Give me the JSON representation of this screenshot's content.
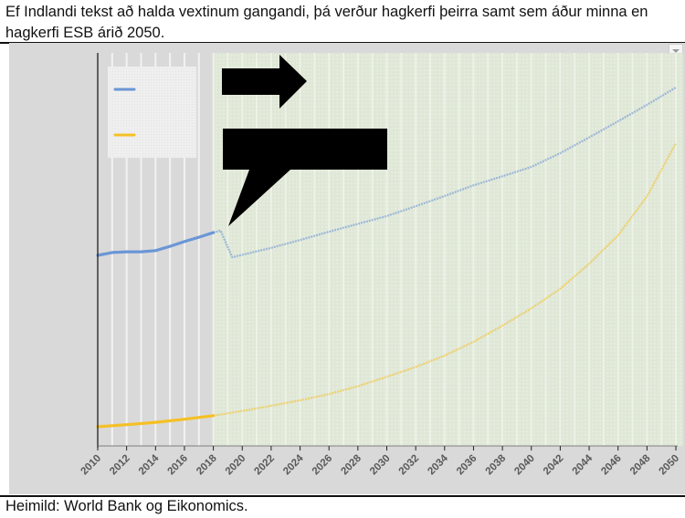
{
  "caption_top": "Ef Indlandi tekst að halda vextinum gangandi, þá verður hagkerfi þeirra samt sem áður minna en hagkerfi ESB árið 2050.",
  "caption_bottom": "Heimild: World Bank og Eikonomics.",
  "colors": {
    "blue_series": "#6a96d6",
    "yellow_series": "#f5c025",
    "frame_bg": "#d9d9d9",
    "forecast_bg": "#e0e8d8",
    "annotation": "#000000"
  },
  "chart_data": {
    "type": "line",
    "title": "",
    "xlabel": "",
    "ylabel": "",
    "y_axis_labels_visible": false,
    "y_units": "relative (0-100 of plot height; no y-axis values shown)",
    "x_ticks": [
      "2010",
      "2012",
      "2014",
      "2016",
      "2018",
      "2020",
      "2022",
      "2024",
      "2026",
      "2028",
      "2030",
      "2032",
      "2034",
      "2036",
      "2038",
      "2040",
      "2042",
      "2044",
      "2046",
      "2048",
      "2050"
    ],
    "xlim": [
      2010,
      2050
    ],
    "ylim": [
      0,
      100
    ],
    "forecast_region_start": 2018,
    "legend": {
      "position": "top-left inset",
      "entries": [
        {
          "color": "#6a96d6",
          "label": ""
        },
        {
          "color": "#f5c025",
          "label": ""
        }
      ]
    },
    "series": [
      {
        "name": "blue",
        "color": "#6a96d6",
        "x": [
          2010,
          2011,
          2012,
          2013,
          2014,
          2015,
          2016,
          2017,
          2018,
          2018.5,
          2019.3,
          2022,
          2024,
          2026,
          2028,
          2030,
          2032,
          2034,
          2036,
          2038,
          2040,
          2042,
          2044,
          2046,
          2048,
          2050
        ],
        "values": [
          48.5,
          49.2,
          49.4,
          49.4,
          49.7,
          50.8,
          52.0,
          53.1,
          54.3,
          54.8,
          48.0,
          50.4,
          52.4,
          54.5,
          56.5,
          58.5,
          61.0,
          63.6,
          66.3,
          68.6,
          71.0,
          74.5,
          78.5,
          82.6,
          86.8,
          91.2
        ]
      },
      {
        "name": "yellow",
        "color": "#f5c025",
        "x": [
          2010,
          2012,
          2014,
          2016,
          2018,
          2020,
          2022,
          2024,
          2026,
          2028,
          2030,
          2032,
          2034,
          2036,
          2038,
          2040,
          2042,
          2044,
          2046,
          2048,
          2050
        ],
        "values": [
          4.9,
          5.4,
          6.0,
          6.8,
          7.7,
          8.9,
          10.2,
          11.6,
          13.2,
          15.2,
          17.6,
          20.1,
          23.0,
          26.5,
          30.6,
          35.0,
          40.0,
          46.3,
          53.6,
          63.5,
          77.0
        ]
      }
    ],
    "annotations": [
      {
        "type": "right-arrow",
        "fill": "#000000",
        "text": ""
      },
      {
        "type": "callout-box",
        "fill": "#000000",
        "text": "",
        "points_to": "blue series at 2018"
      }
    ]
  }
}
